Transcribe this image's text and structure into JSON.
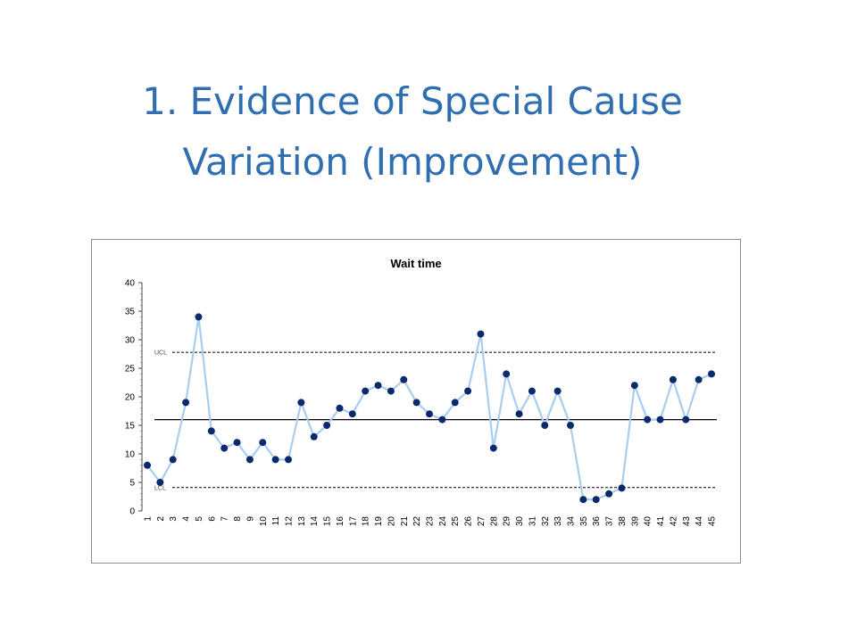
{
  "slide": {
    "title_line1": "1. Evidence of Special Cause",
    "title_line2": "Variation (Improvement)"
  },
  "colors": {
    "title": "#2f6fb1",
    "line": "#a8cdef",
    "marker": "#0b2a6e",
    "center_line": "#000000",
    "limit_line": "#000000"
  },
  "chart_data": {
    "type": "line",
    "title": "Wait time",
    "xlabel": "",
    "ylabel": "",
    "x": [
      1,
      2,
      3,
      4,
      5,
      6,
      7,
      8,
      9,
      10,
      11,
      12,
      13,
      14,
      15,
      16,
      17,
      18,
      19,
      20,
      21,
      22,
      23,
      24,
      25,
      26,
      27,
      28,
      29,
      30,
      31,
      32,
      33,
      34,
      35,
      36,
      37,
      38,
      39,
      40,
      41,
      42,
      43,
      44,
      45
    ],
    "series": [
      {
        "values": [
          8,
          5,
          9,
          19,
          34,
          14,
          11,
          12,
          9,
          12,
          9,
          9,
          19,
          13,
          15,
          18,
          17,
          21,
          22,
          21,
          23,
          19,
          17,
          16,
          19,
          21,
          31,
          11,
          24,
          17,
          21,
          15,
          21,
          15,
          2,
          2,
          3,
          4,
          22,
          16,
          16,
          23,
          16,
          23,
          24
        ]
      }
    ],
    "ylim": [
      0,
      40
    ],
    "yticks": [
      0,
      5,
      10,
      15,
      20,
      25,
      30,
      35,
      40
    ],
    "center_line": 16,
    "ucl": 27.8,
    "lcl": 4.1,
    "ucl_label": "UCL",
    "lcl_label": "LCL",
    "grid": false,
    "legend": "none"
  }
}
